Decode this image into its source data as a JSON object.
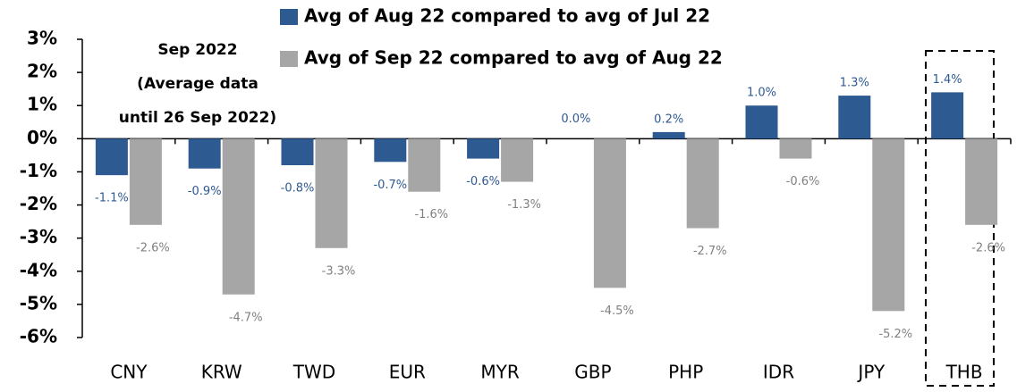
{
  "chart_data": {
    "type": "bar",
    "annotation": [
      "Sep 2022",
      "(Average data",
      "until 26 Sep 2022)"
    ],
    "categories": [
      "CNY",
      "KRW",
      "TWD",
      "EUR",
      "MYR",
      "GBP",
      "PHP",
      "IDR",
      "JPY",
      "THB"
    ],
    "series": [
      {
        "name": "Avg of Aug 22 compared to avg of Jul 22",
        "color": "#2e5a92",
        "values": [
          -1.1,
          -0.9,
          -0.8,
          -0.7,
          -0.6,
          0.0,
          0.2,
          1.0,
          1.3,
          1.4
        ],
        "value_labels": [
          "-1.1%",
          "-0.9%",
          "-0.8%",
          "-0.7%",
          "-0.6%",
          "0.0%",
          "0.2%",
          "1.0%",
          "1.3%",
          "1.4%"
        ]
      },
      {
        "name": "Avg of Sep 22 compared to avg of Aug 22",
        "color": "#a6a6a6",
        "values": [
          -2.6,
          -4.7,
          -3.3,
          -1.6,
          -1.3,
          -4.5,
          -2.7,
          -0.6,
          -5.2,
          -2.6
        ],
        "value_labels": [
          "-2.6%",
          "-4.7%",
          "-3.3%",
          "-1.6%",
          "-1.3%",
          "-4.5%",
          "-2.7%",
          "-0.6%",
          "-5.2%",
          "-2.6%"
        ]
      }
    ],
    "ylim": [
      -6,
      3
    ],
    "yticks": [
      {
        "value": 3,
        "label": "3%"
      },
      {
        "value": 2,
        "label": "2%"
      },
      {
        "value": 1,
        "label": "1%"
      },
      {
        "value": 0,
        "label": "0%"
      },
      {
        "value": -1,
        "label": "-1%"
      },
      {
        "value": -2,
        "label": "-2%"
      },
      {
        "value": -3,
        "label": "-3%"
      },
      {
        "value": -4,
        "label": "-4%"
      },
      {
        "value": -5,
        "label": "-5%"
      },
      {
        "value": -6,
        "label": "-6%"
      }
    ]
  }
}
